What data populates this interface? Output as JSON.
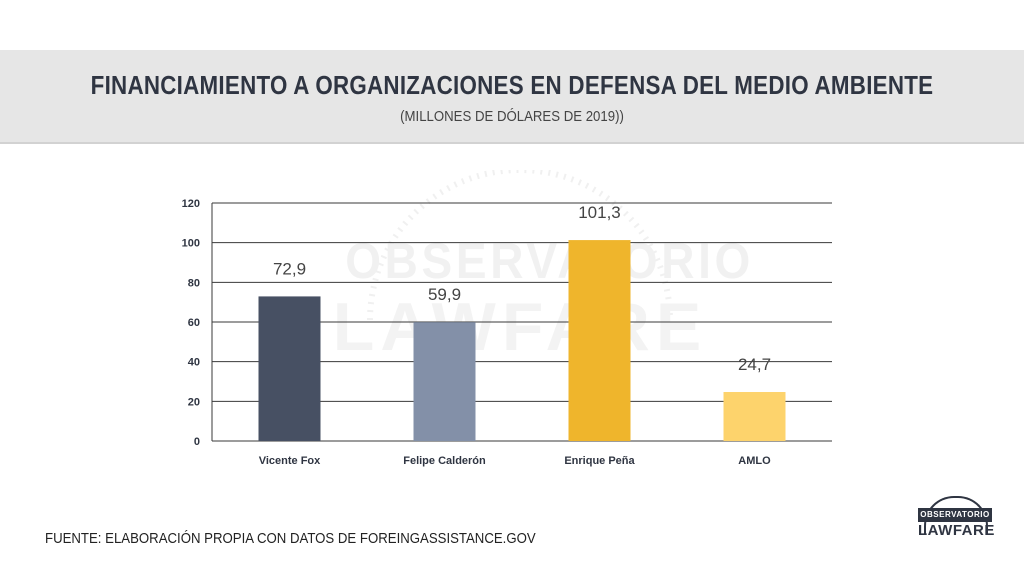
{
  "header": {
    "title": "FINANCIAMIENTO A ORGANIZACIONES EN DEFENSA DEL MEDIO AMBIENTE",
    "subtitle": "(MILLONES DE DÓLARES DE 2019))"
  },
  "watermark": {
    "top": "OBSERVATORIO",
    "bottom": "LAWFARE"
  },
  "source": "FUENTE: ELABORACIÓN PROPIA CON DATOS DE FOREINGASSISTANCE.GOV",
  "logo": {
    "top": "OBSERVATORIO",
    "bottom": "LAWFARE"
  },
  "colors": {
    "grid": "#3a3a3a",
    "axis_text": "#2f3542",
    "label_text": "#444444"
  },
  "chart_data": {
    "type": "bar",
    "categories": [
      "Vicente Fox",
      "Felipe Calderón",
      "Enrique Peña",
      "AMLO"
    ],
    "values": [
      72.9,
      59.9,
      101.3,
      24.7
    ],
    "value_labels": [
      "72,9",
      "59,9",
      "101,3",
      "24,7"
    ],
    "bar_colors": [
      "#475063",
      "#8390a8",
      "#efb52c",
      "#fdd36c"
    ],
    "yticks": [
      0,
      20,
      40,
      60,
      80,
      100,
      120
    ],
    "ylim": [
      0,
      120
    ],
    "grid": true,
    "legend": false
  }
}
